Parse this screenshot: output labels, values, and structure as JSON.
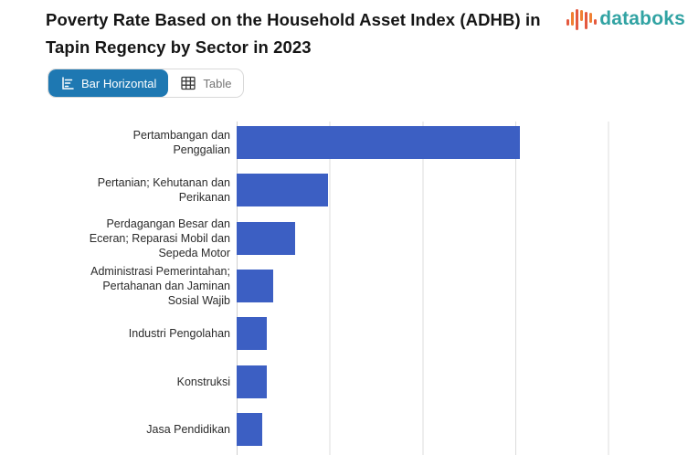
{
  "header": {
    "title": "Poverty Rate Based on the Household Asset Index (ADHB) in Tapin Regency by Sector in 2023",
    "title_lines": [
      "Poverty Rate Based on the Household Asset Index (ADHB) in",
      "Tapin Regency by Sector in 2023"
    ]
  },
  "logo": {
    "text": "databoks",
    "text_color": "#31A3A3",
    "icon_colors": [
      "#E4593F",
      "#F08033"
    ]
  },
  "view_toggle": {
    "options": [
      {
        "label": "Bar Horizontal",
        "active": true
      },
      {
        "label": "Table",
        "active": false
      }
    ],
    "active_bg": "#1E78B2",
    "active_text_color": "#FFFFFF",
    "inactive_text_color": "#757575"
  },
  "chart_data": {
    "type": "bar",
    "orientation": "horizontal",
    "title": "Poverty Rate Based on the Household Asset Index (ADHB) in Tapin Regency by Sector in 2023",
    "categories": [
      "Pertambangan dan Penggalian",
      "Pertanian; Kehutanan dan Perikanan",
      "Perdagangan Besar dan Eceran; Reparasi Mobil dan Sepeda Motor",
      "Administrasi Pemerintahan; Pertahanan dan Jaminan Sosial Wajib",
      "Industri Pengolahan",
      "Konstruksi",
      "Jasa Pendidikan"
    ],
    "category_display_lines": [
      [
        "Pertambangan dan",
        "Penggalian"
      ],
      [
        "Pertanian; Kehutanan dan",
        "Perikanan"
      ],
      [
        "Perdagangan Besar dan",
        "Eceran; Reparasi Mobil dan",
        "Sepeda Motor"
      ],
      [
        "Administrasi Pemerintahan;",
        "Pertahanan dan Jaminan",
        "Sosial Wajib"
      ],
      [
        "Industri Pengolahan"
      ],
      [
        "Konstruksi"
      ],
      [
        "Jasa Pendidikan"
      ]
    ],
    "values": [
      3.05,
      0.98,
      0.63,
      0.39,
      0.32,
      0.32,
      0.28
    ],
    "value_units": "relative; 1.0 = one gridline interval (axis tick labels not visible in screenshot)",
    "xlim": [
      0,
      4.86
    ],
    "gridline_interval": 1,
    "grid": "vertical-only",
    "legend": "none",
    "axis_tick_labels_visible": false,
    "bar_color": "#3C5FC3",
    "gridline_color": "#DCDCDC",
    "axis_line_color": "#CFCFCF",
    "label_color": "#2B2B2B"
  }
}
